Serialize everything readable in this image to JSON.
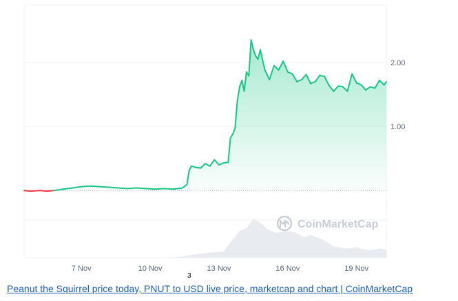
{
  "chart_data": {
    "type": "area",
    "title": "",
    "xlabel": "",
    "ylabel": "",
    "x_tick_labels": [
      "7 Nov",
      "10 Nov",
      "13 Nov",
      "16 Nov",
      "19 Nov"
    ],
    "x_tick_days": [
      7,
      10,
      13,
      16,
      19
    ],
    "xlim": [
      4.5,
      20.3
    ],
    "y_tick_labels": [
      "1.00",
      "2.00"
    ],
    "y_tick_values": [
      1.0,
      2.0
    ],
    "ylim": [
      -1.05,
      2.9
    ],
    "baseline": 0.0,
    "grid": true,
    "legend": "none",
    "series": [
      {
        "color_up": "#16c784",
        "color_down": "#ea3943",
        "x": [
          4.5,
          4.8,
          5.2,
          5.5,
          5.8,
          6.2,
          6.6,
          7.0,
          7.4,
          7.8,
          8.2,
          8.6,
          9.0,
          9.4,
          9.8,
          10.2,
          10.6,
          11.0,
          11.4,
          11.6,
          11.7,
          11.8,
          12.0,
          12.2,
          12.4,
          12.6,
          12.8,
          13.0,
          13.2,
          13.4,
          13.5,
          13.6,
          13.7,
          13.8,
          13.9,
          14.0,
          14.1,
          14.2,
          14.3,
          14.4,
          14.5,
          14.6,
          14.7,
          14.8,
          15.0,
          15.2,
          15.4,
          15.6,
          15.8,
          16.0,
          16.2,
          16.4,
          16.6,
          16.8,
          17.0,
          17.2,
          17.4,
          17.6,
          17.8,
          18.0,
          18.2,
          18.4,
          18.6,
          18.8,
          19.0,
          19.2,
          19.4,
          19.6,
          19.8,
          20.0,
          20.2,
          20.3
        ],
        "values": [
          0.0,
          -0.01,
          0.0,
          -0.01,
          0.0,
          0.02,
          0.04,
          0.06,
          0.07,
          0.06,
          0.05,
          0.04,
          0.03,
          0.04,
          0.03,
          0.02,
          0.03,
          0.02,
          0.04,
          0.09,
          0.32,
          0.38,
          0.36,
          0.35,
          0.42,
          0.38,
          0.48,
          0.4,
          0.43,
          0.44,
          0.82,
          0.88,
          0.97,
          1.4,
          1.62,
          1.72,
          1.55,
          1.85,
          1.79,
          2.35,
          2.2,
          2.1,
          2.05,
          2.2,
          1.88,
          1.73,
          1.95,
          1.88,
          2.02,
          1.85,
          1.82,
          1.7,
          1.73,
          1.81,
          1.67,
          1.7,
          1.8,
          1.78,
          1.64,
          1.55,
          1.63,
          1.62,
          1.55,
          1.82,
          1.68,
          1.65,
          1.57,
          1.62,
          1.6,
          1.72,
          1.65,
          1.7
        ]
      }
    ],
    "volume": {
      "x": [
        4.5,
        8.0,
        10.8,
        11.4,
        11.9,
        12.5,
        13.2,
        13.6,
        13.9,
        14.2,
        14.5,
        14.8,
        15.1,
        15.5,
        15.9,
        16.3,
        16.7,
        17.0,
        17.5,
        18.0,
        18.5,
        19.0,
        19.5,
        20.0,
        20.3
      ],
      "values": [
        0.0,
        0.0,
        0.0,
        0.03,
        0.08,
        0.12,
        0.15,
        0.45,
        0.65,
        0.72,
        0.95,
        0.85,
        0.7,
        0.6,
        0.65,
        0.62,
        0.5,
        0.55,
        0.45,
        0.28,
        0.22,
        0.25,
        0.18,
        0.22,
        0.2
      ]
    }
  },
  "watermark": {
    "text": "CoinMarketCap",
    "icon": "coinmarketcap-logo-icon"
  },
  "footnote": "3",
  "caption": "Peanut the Squirrel price today, PNUT to USD live price, marketcap and chart | CoinMarketCap"
}
